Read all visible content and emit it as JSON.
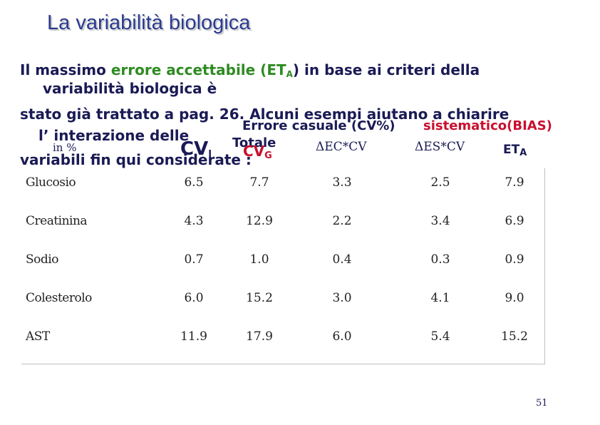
{
  "title": "La variabilità biologica",
  "intro": {
    "line1_a": "Il massimo ",
    "line1_b": "errore accettabile (ET",
    "line1_b_sub": "A",
    "line1_c": ") in base ai criteri della",
    "line2": "variabilità biologica è",
    "line3": "stato già trattato a pag. 26. Alcuni esempi aiutano a chiarire",
    "line4": "l’ interazione delle",
    "line5": "variabili fin qui considerate :"
  },
  "headers": {
    "random": "Errore casuale (CV%)",
    "systematic": "sistematico(BIAS)",
    "total": "Totale",
    "in_percent": "in %",
    "cvi": "CV",
    "cvi_sub": "I",
    "cvg": "CV",
    "cvg_sub": "G",
    "delta_ec": "ΔEC*CV",
    "delta_es": "ΔES*CV",
    "eta": "ET",
    "eta_sub": "A"
  },
  "rows": [
    {
      "name": "Glucosio",
      "v1": "6.5",
      "v2": "7.7",
      "v3": "3.3",
      "v4": "2.5",
      "v5": "7.9"
    },
    {
      "name": "Creatinina",
      "v1": "4.3",
      "v2": "12.9",
      "v3": "2.2",
      "v4": "3.4",
      "v5": "6.9"
    },
    {
      "name": "Sodio",
      "v1": "0.7",
      "v2": "1.0",
      "v3": "0.4",
      "v4": "0.3",
      "v5": "0.9"
    },
    {
      "name": "Colesterolo",
      "v1": "6.0",
      "v2": "15.2",
      "v3": "3.0",
      "v4": "4.1",
      "v5": "9.0"
    },
    {
      "name": "AST",
      "v1": "11.9",
      "v2": "17.9",
      "v3": "6.0",
      "v4": "5.4",
      "v5": "15.2"
    }
  ],
  "page_number": "51"
}
